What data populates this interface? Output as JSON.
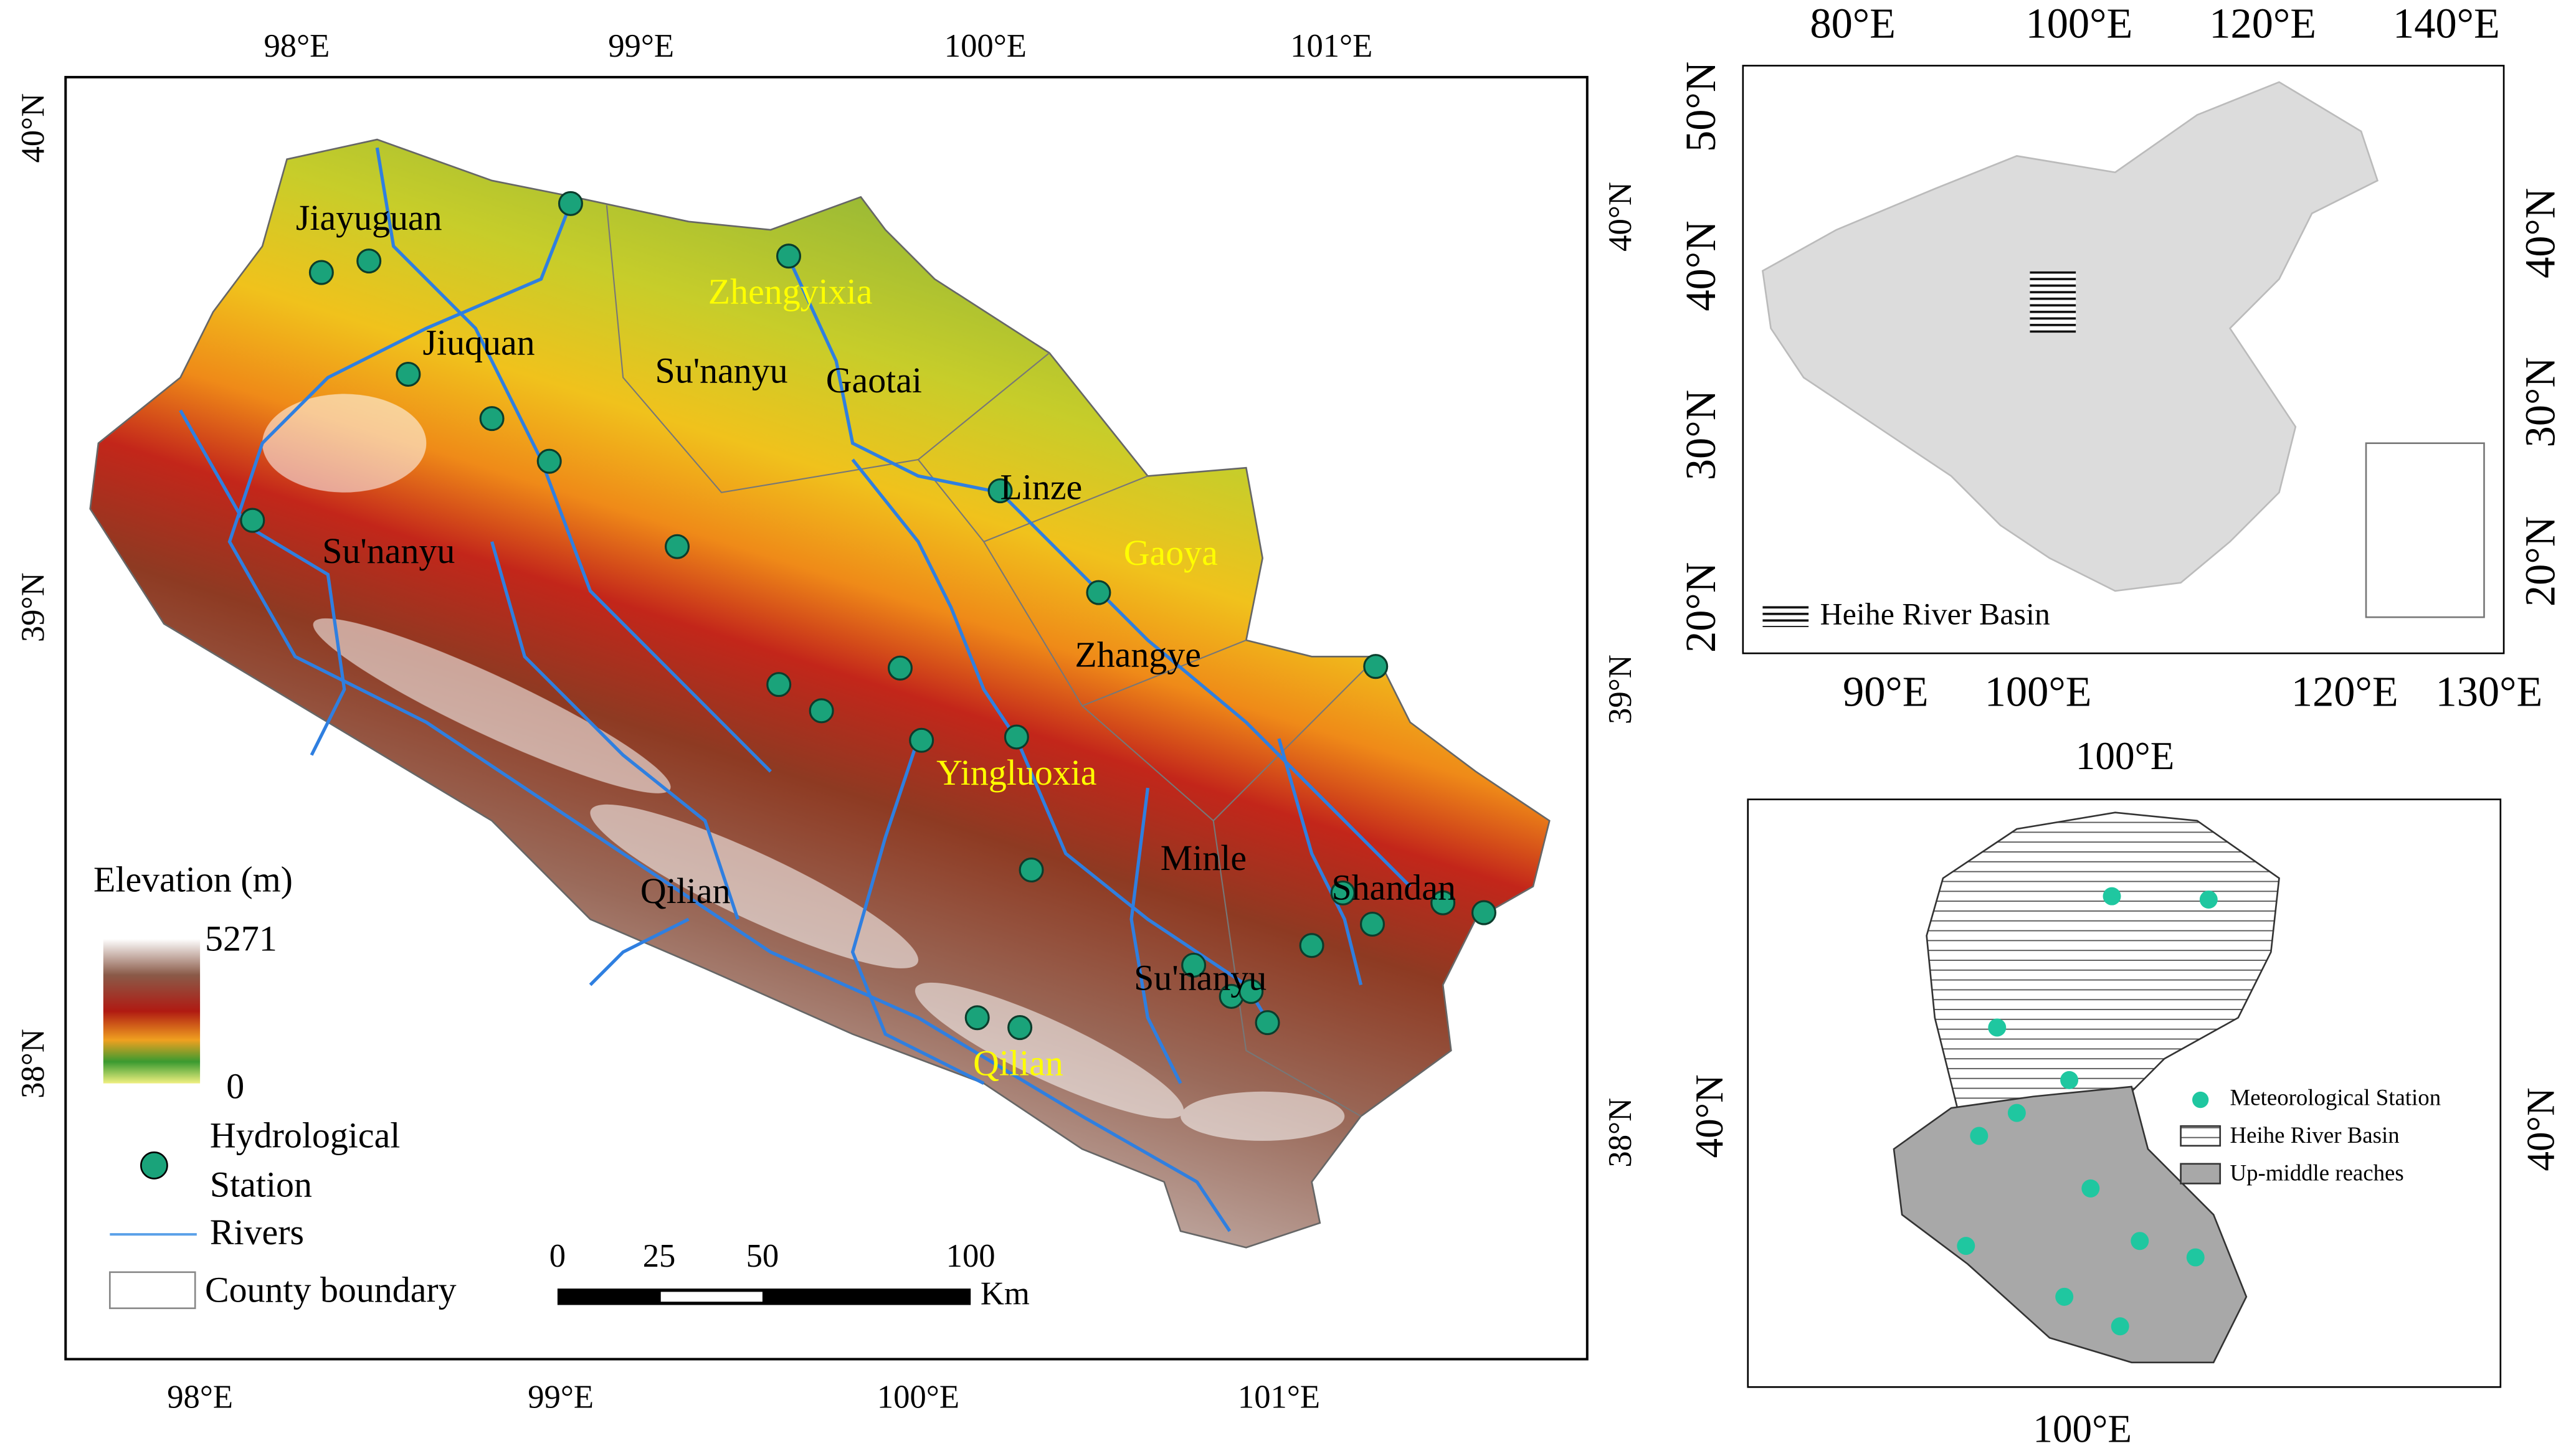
{
  "main_map": {
    "lon_labels_top": [
      "98°E",
      "99°E",
      "100°E",
      "101°E"
    ],
    "lon_labels_bottom": [
      "98°E",
      "99°E",
      "100°E",
      "101°E"
    ],
    "lat_labels_left": [
      "40°N",
      "39°N",
      "38°N"
    ],
    "lat_labels_right": [
      "40°N",
      "39°N",
      "38°N"
    ],
    "place_labels": [
      {
        "text": "Jiayuguan",
        "color": "#000000"
      },
      {
        "text": "Zhengyixia",
        "color": "#ffff00"
      },
      {
        "text": "Jiuquan",
        "color": "#000000"
      },
      {
        "text": "Su'nanyu",
        "color": "#000000"
      },
      {
        "text": "Gaotai",
        "color": "#000000"
      },
      {
        "text": "Linze",
        "color": "#000000"
      },
      {
        "text": "Gaoya",
        "color": "#ffff00"
      },
      {
        "text": "Su'nanyu",
        "color": "#000000"
      },
      {
        "text": "Zhangye",
        "color": "#000000"
      },
      {
        "text": "Yingluoxia",
        "color": "#ffff00"
      },
      {
        "text": "Minle",
        "color": "#000000"
      },
      {
        "text": "Shandan",
        "color": "#000000"
      },
      {
        "text": "Qilian",
        "color": "#000000"
      },
      {
        "text": "Su'nanyu",
        "color": "#000000"
      },
      {
        "text": "Qilian",
        "color": "#ffff00"
      }
    ],
    "legend": {
      "title": "Elevation (m)",
      "max": "5271",
      "min": "0",
      "station": [
        "Hydrological",
        "Station"
      ],
      "rivers": "Rivers",
      "county": "County boundary"
    },
    "scale_bar": {
      "ticks": [
        "0",
        "25",
        "50",
        "100"
      ],
      "unit": "Km"
    }
  },
  "china_map": {
    "lon_labels_top": [
      "80°E",
      "100°E",
      "120°E",
      "140°E"
    ],
    "lon_labels_bottom": [
      "90°E",
      "100°E",
      "120°E",
      "130°E"
    ],
    "lat_labels_left": [
      "50°N",
      "40°N",
      "30°N",
      "20°N"
    ],
    "lat_labels_right": [
      "40°N",
      "30°N",
      "20°N"
    ],
    "legend": "Heihe River Basin"
  },
  "basin_map": {
    "lon_label_top": "100°E",
    "lon_label_bottom": "100°E",
    "lat_label_left": "40°N",
    "lat_label_right": "40°N",
    "legend": [
      "Meteorological Station",
      "Heihe River Basin",
      "Up-middle reaches"
    ]
  }
}
